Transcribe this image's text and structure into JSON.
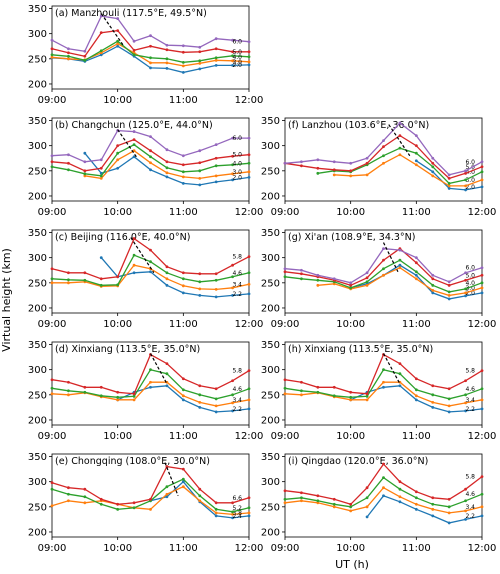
{
  "chart_data": {
    "type": "line",
    "ylabel": "Virtual height (km)",
    "xlabel": "UT (h)",
    "x_ticks": [
      "09:00",
      "10:00",
      "11:00",
      "12:00"
    ],
    "y_ticks": [
      "200",
      "250",
      "300",
      "350"
    ],
    "xlim": [
      9.0,
      12.0
    ],
    "ylim": [
      190,
      355
    ],
    "colors": [
      "#1f77b4",
      "#ff7f0e",
      "#2ca02c",
      "#d62728",
      "#9467bd"
    ],
    "panels": [
      {
        "title": "(a) Manzhouli (117.5°E, 49.5°N)",
        "x": [
          9.0,
          9.25,
          9.5,
          9.75,
          10.0,
          10.25,
          10.5,
          10.75,
          11.0,
          11.25,
          11.5,
          11.75,
          12.0
        ],
        "series": [
          {
            "label": "2.0",
            "values": [
              252,
              250,
              245,
              258,
              275,
              255,
              232,
              231,
              223,
              230,
              237,
              237,
              238
            ]
          },
          {
            "label": "3.0",
            "values": [
              253,
              250,
              248,
              262,
              280,
              262,
              242,
              242,
              236,
              241,
              247,
              246,
              244
            ]
          },
          {
            "label": "4.0",
            "values": [
              258,
              255,
              247,
              266,
              285,
              258,
              252,
              250,
              243,
              246,
              252,
              256,
              254
            ]
          },
          {
            "label": "5.0",
            "values": [
              270,
              262,
              255,
              302,
              306,
              267,
              275,
              268,
              263,
              264,
              270,
              264,
              264
            ]
          },
          {
            "label": "6.0",
            "values": [
              287,
              270,
              265,
              335,
              330,
              285,
              296,
              277,
              276,
              273,
              290,
              287,
              284
            ]
          }
        ],
        "dash": [
          [
            9.75,
            340
          ],
          [
            10.08,
            278
          ]
        ]
      },
      {
        "title": "(b) Changchun (125.0°E, 44.0°N)",
        "x": [
          9.0,
          9.25,
          9.5,
          9.75,
          10.0,
          10.25,
          10.5,
          10.75,
          11.0,
          11.25,
          11.5,
          11.75,
          12.0
        ],
        "series": [
          {
            "label": "2.0",
            "values": [
              null,
              null,
              285,
              245,
              255,
              278,
              252,
              238,
              225,
              222,
              228,
              232,
              237
            ]
          },
          {
            "label": "3.0",
            "values": [
              null,
              null,
              240,
              235,
              272,
              290,
              266,
              246,
              238,
              235,
              240,
              244,
              248
            ]
          },
          {
            "label": "4.0",
            "values": [
              258,
              252,
              244,
              240,
              285,
              302,
              278,
              256,
              248,
              250,
              260,
              262,
              265
            ]
          },
          {
            "label": "5.0",
            "values": [
              268,
              265,
              250,
              255,
              300,
              312,
              290,
              268,
              262,
              266,
              275,
              279,
              282
            ]
          },
          {
            "label": "6.0",
            "values": [
              280,
              282,
              268,
              272,
              330,
              328,
              318,
              292,
              280,
              290,
              302,
              315,
              315
            ]
          }
        ],
        "dash": [
          [
            10.0,
            332
          ],
          [
            10.3,
            275
          ]
        ]
      },
      {
        "title": "(c) Beijing (116.0°E, 40.0°N)",
        "x": [
          9.0,
          9.25,
          9.5,
          9.75,
          10.0,
          10.25,
          10.5,
          10.75,
          11.0,
          11.25,
          11.5,
          11.75,
          12.0
        ],
        "series": [
          {
            "label": "2.2",
            "values": [
              null,
              null,
              null,
              300,
              262,
              270,
              272,
              245,
              230,
              225,
              222,
              225,
              228
            ]
          },
          {
            "label": "3.4",
            "values": [
              250,
              250,
              252,
              243,
              244,
              285,
              278,
              258,
              244,
              238,
              237,
              240,
              247
            ]
          },
          {
            "label": "4.6",
            "values": [
              258,
              256,
              255,
              245,
              246,
              305,
              292,
              270,
              258,
              252,
              255,
              262,
              270
            ]
          },
          {
            "label": "5.8",
            "values": [
              278,
              270,
              270,
              258,
              262,
              338,
              315,
              282,
              270,
              268,
              268,
              285,
              302
            ]
          }
        ],
        "dash": [
          [
            10.2,
            340
          ],
          [
            10.55,
            270
          ]
        ]
      },
      {
        "title": "(d) Xinxiang (113.5°E, 35.0°N)",
        "x": [
          9.0,
          9.25,
          9.5,
          9.75,
          10.0,
          10.25,
          10.5,
          10.75,
          11.0,
          11.25,
          11.5,
          11.75,
          12.0
        ],
        "series": [
          {
            "label": "2.2",
            "values": [
              null,
              null,
              null,
              null,
              240,
              255,
              265,
              268,
              240,
              225,
              216,
              218,
              222
            ]
          },
          {
            "label": "3.4",
            "values": [
              252,
              250,
              254,
              246,
              240,
              240,
              275,
              275,
              248,
              235,
              228,
              234,
              240
            ]
          },
          {
            "label": "4.6",
            "values": [
              263,
              258,
              255,
              248,
              245,
              247,
              300,
              292,
              260,
              250,
              242,
              250,
              262
            ]
          },
          {
            "label": "5.8",
            "values": [
              280,
              275,
              265,
              265,
              255,
              252,
              330,
              312,
              282,
              268,
              262,
              278,
              298
            ]
          }
        ],
        "dash": [
          [
            10.5,
            332
          ],
          [
            10.75,
            272
          ]
        ]
      },
      {
        "title": "(e) Chongqing (108.0°E, 30.0°N)",
        "x": [
          9.0,
          9.25,
          9.5,
          9.75,
          10.0,
          10.25,
          10.5,
          10.75,
          11.0,
          11.25,
          11.5,
          11.75,
          12.0
        ],
        "series": [
          {
            "label": "2.4",
            "values": [
              null,
              null,
              null,
              null,
              null,
              null,
              262,
              270,
              300,
              260,
              232,
              228,
              232
            ]
          },
          {
            "label": "3.8",
            "values": [
              252,
              262,
              258,
              262,
              255,
              248,
              245,
              275,
              290,
              262,
              238,
              235,
              238
            ]
          },
          {
            "label": "5.2",
            "values": [
              285,
              275,
              270,
              255,
              245,
              248,
              262,
              290,
              305,
              272,
              245,
              240,
              248
            ]
          },
          {
            "label": "6.6",
            "values": [
              298,
              288,
              285,
              265,
              255,
              258,
              265,
              330,
              325,
              285,
              258,
              258,
              268
            ]
          }
        ],
        "dash": [
          [
            10.72,
            338
          ],
          [
            10.92,
            272
          ]
        ]
      },
      {
        "title": "(f) Lanzhou (103.6°E, 36.0°N)",
        "x": [
          9.0,
          9.25,
          9.5,
          9.75,
          10.0,
          10.25,
          10.5,
          10.75,
          11.0,
          11.25,
          11.5,
          11.75,
          12.0
        ],
        "series": [
          {
            "label": "2.0",
            "values": [
              null,
              null,
              null,
              null,
              null,
              null,
              null,
              null,
              270,
              248,
              215,
              212,
              218
            ]
          },
          {
            "label": "3.0",
            "values": [
              null,
              null,
              null,
              242,
              240,
              242,
              265,
              282,
              262,
              240,
              220,
              220,
              232
            ]
          },
          {
            "label": "4.0",
            "values": [
              null,
              null,
              245,
              250,
              248,
              262,
              280,
              295,
              285,
              258,
              225,
              232,
              248
            ]
          },
          {
            "label": "5.0",
            "values": [
              265,
              260,
              255,
              252,
              250,
              265,
              298,
              320,
              300,
              265,
              235,
              245,
              258
            ]
          },
          {
            "label": "6.0",
            "values": [
              265,
              268,
              272,
              268,
              265,
              275,
              310,
              345,
              320,
              275,
              242,
              250,
              268
            ]
          }
        ],
        "dash": [
          [
            10.58,
            342
          ],
          [
            10.9,
            280
          ]
        ]
      },
      {
        "title": "(g) Xi'an (108.9°E, 34.3°N)",
        "x": [
          9.0,
          9.25,
          9.5,
          9.75,
          10.0,
          10.25,
          10.5,
          10.75,
          11.0,
          11.25,
          11.5,
          11.75,
          12.0
        ],
        "series": [
          {
            "label": "2.0",
            "values": [
              null,
              null,
              null,
              null,
              240,
              248,
              265,
              285,
              265,
              230,
              218,
              224,
              230
            ]
          },
          {
            "label": "3.0",
            "values": [
              null,
              null,
              245,
              248,
              238,
              245,
              265,
              280,
              258,
              235,
              225,
              230,
              240
            ]
          },
          {
            "label": "4.0",
            "values": [
              262,
              258,
              255,
              252,
              240,
              252,
              278,
              295,
              272,
              245,
              232,
              238,
              250
            ]
          },
          {
            "label": "5.0",
            "values": [
              272,
              268,
              262,
              255,
              245,
              260,
              295,
              318,
              290,
              258,
              245,
              255,
              265
            ]
          },
          {
            "label": "6.0",
            "values": [
              278,
              275,
              265,
              258,
              250,
              270,
              318,
              315,
              300,
              265,
              252,
              270,
              280
            ]
          }
        ],
        "dash": [
          [
            10.5,
            330
          ],
          [
            10.72,
            272
          ]
        ]
      },
      {
        "title": "(h) Xinxiang (113.5°E, 35.0°N)",
        "x": [
          9.0,
          9.25,
          9.5,
          9.75,
          10.0,
          10.25,
          10.5,
          10.75,
          11.0,
          11.25,
          11.5,
          11.75,
          12.0
        ],
        "series": [
          {
            "label": "2.2",
            "values": [
              null,
              null,
              null,
              null,
              240,
              255,
              265,
              268,
              240,
              225,
              216,
              218,
              222
            ]
          },
          {
            "label": "3.4",
            "values": [
              252,
              250,
              254,
              246,
              240,
              240,
              275,
              275,
              248,
              235,
              228,
              234,
              240
            ]
          },
          {
            "label": "4.6",
            "values": [
              263,
              258,
              255,
              248,
              245,
              247,
              300,
              292,
              260,
              250,
              242,
              250,
              262
            ]
          },
          {
            "label": "5.8",
            "values": [
              280,
              275,
              265,
              265,
              255,
              252,
              330,
              312,
              282,
              268,
              262,
              278,
              298
            ]
          }
        ],
        "dash": [
          [
            10.5,
            332
          ],
          [
            10.75,
            272
          ]
        ]
      },
      {
        "title": "(i) Qingdao (120.0°E, 36.0°N)",
        "x": [
          9.0,
          9.25,
          9.5,
          9.75,
          10.0,
          10.25,
          10.5,
          10.75,
          11.0,
          11.25,
          11.5,
          11.75,
          12.0
        ],
        "series": [
          {
            "label": "2.2",
            "values": [
              null,
              null,
              null,
              null,
              null,
              230,
              272,
              260,
              245,
              232,
              218,
              225,
              232
            ]
          },
          {
            "label": "3.4",
            "values": [
              258,
              262,
              258,
              250,
              242,
              250,
              288,
              270,
              255,
              245,
              238,
              242,
              250
            ]
          },
          {
            "label": "4.6",
            "values": [
              265,
              268,
              262,
              255,
              250,
              268,
              308,
              285,
              268,
              255,
              250,
              262,
              275
            ]
          },
          {
            "label": "5.8",
            "values": [
              282,
              278,
              272,
              265,
              255,
              288,
              335,
              300,
              280,
              268,
              265,
              285,
              310
            ]
          }
        ],
        "dash": null
      }
    ]
  }
}
